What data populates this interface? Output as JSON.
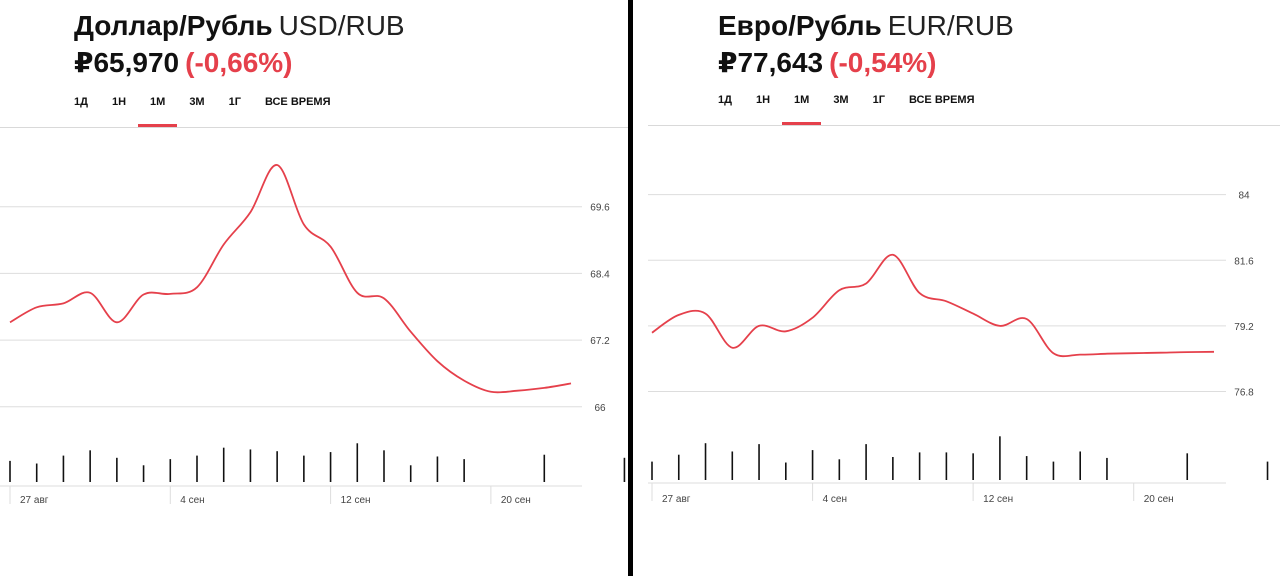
{
  "panels": [
    {
      "id": "usd",
      "title_ru": "Доллар/Рубль",
      "title_code": "USD/RUB",
      "price": "₽65,970",
      "change": "(-0,66%)",
      "tabs": [
        "1Д",
        "1Н",
        "1М",
        "3М",
        "1Г",
        "ВСЕ ВРЕМЯ"
      ],
      "active_tab": "1М"
    },
    {
      "id": "eur",
      "title_ru": "Евро/Рубль",
      "title_code": "EUR/RUB",
      "price": "₽77,643",
      "change": "(-0,54%)",
      "tabs": [
        "1Д",
        "1Н",
        "1М",
        "3М",
        "1Г",
        "ВСЕ ВРЕМЯ"
      ],
      "active_tab": "1М"
    }
  ],
  "colors": {
    "line": "#e5404b",
    "change": "#e5404b",
    "grid": "#dddddd",
    "volume": "#111111"
  },
  "chart_data": [
    {
      "type": "line",
      "title": "Доллар/Рубль USD/RUB",
      "y_ticks": [
        66,
        67.2,
        68.4,
        69.6
      ],
      "y_tick_labels": [
        "66",
        "67.2",
        "68.4",
        "69.6"
      ],
      "ylim": [
        65.6,
        70.8
      ],
      "x_labels": [
        "27 авг",
        "4 сен",
        "12 сен",
        "20 сен"
      ],
      "x_label_index": [
        0,
        6,
        12,
        18
      ],
      "series": [
        {
          "values": [
            67.52,
            67.79,
            67.86,
            68.05,
            67.52,
            68.02,
            68.03,
            68.15,
            68.92,
            69.5,
            70.35,
            69.28,
            68.88,
            68.05,
            67.95,
            67.35,
            66.82,
            66.47,
            66.27,
            66.29,
            66.34,
            66.42
          ]
        }
      ],
      "volume": [
        0.48,
        0.42,
        0.6,
        0.72,
        0.55,
        0.38,
        0.52,
        0.6,
        0.78,
        0.74,
        0.7,
        0.6,
        0.68,
        0.88,
        0.72,
        0.38,
        0.58,
        0.52,
        0.62,
        0.55
      ],
      "volume_index": [
        0,
        1,
        2,
        3,
        4,
        5,
        6,
        7,
        8,
        9,
        10,
        11,
        12,
        13,
        14,
        15,
        16,
        17,
        20,
        23
      ],
      "grid": true
    },
    {
      "type": "line",
      "title": "Евро/Рубль EUR/RUB",
      "y_ticks": [
        76.8,
        79.2,
        81.6,
        84
      ],
      "y_tick_labels": [
        "76.8",
        "79.2",
        "81.6",
        "84"
      ],
      "ylim": [
        75.5,
        86.0
      ],
      "x_labels": [
        "27 авг",
        "4 сен",
        "12 сен",
        "20 сен"
      ],
      "x_label_index": [
        0,
        6,
        12,
        18
      ],
      "series": [
        {
          "values": [
            78.95,
            79.6,
            79.65,
            78.4,
            79.2,
            79.0,
            79.5,
            80.5,
            80.75,
            81.8,
            80.4,
            80.1,
            79.65,
            79.2,
            79.45,
            78.2,
            78.15,
            78.18,
            78.2,
            78.22,
            78.24,
            78.25
          ]
        }
      ],
      "volume": [
        0.4,
        0.55,
        0.8,
        0.62,
        0.78,
        0.38,
        0.65,
        0.45,
        0.78,
        0.5,
        0.6,
        0.6,
        0.58,
        0.95,
        0.52,
        0.4,
        0.62,
        0.48,
        0.58,
        0.4
      ],
      "volume_index": [
        0,
        1,
        2,
        3,
        4,
        5,
        6,
        7,
        8,
        9,
        10,
        11,
        12,
        13,
        14,
        15,
        16,
        17,
        20,
        23
      ],
      "grid": true
    }
  ]
}
